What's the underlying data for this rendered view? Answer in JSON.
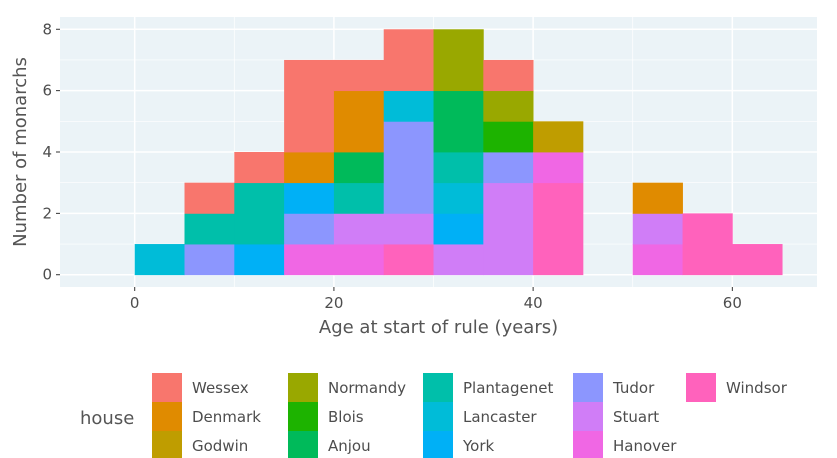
{
  "chart_data": {
    "type": "bar",
    "subtype": "stacked-histogram",
    "xlabel": "Age at start of rule (years)",
    "ylabel": "Number of monarchs",
    "xlim": [
      -7.5,
      68.5
    ],
    "ylim": [
      -0.4,
      8.4
    ],
    "x_ticks": [
      0,
      20,
      40,
      60
    ],
    "y_ticks": [
      0,
      2,
      4,
      6,
      8
    ],
    "bin_width": 5,
    "grid": true,
    "legend_title": "house",
    "legend_position": "bottom",
    "houses": [
      {
        "name": "Wessex",
        "color": "#F8766D"
      },
      {
        "name": "Denmark",
        "color": "#E08B00"
      },
      {
        "name": "Godwin",
        "color": "#BF9D00"
      },
      {
        "name": "Normandy",
        "color": "#99A800"
      },
      {
        "name": "Blois",
        "color": "#1DB300"
      },
      {
        "name": "Anjou",
        "color": "#00BA5A"
      },
      {
        "name": "Plantagenet",
        "color": "#00BFAA"
      },
      {
        "name": "Lancaster",
        "color": "#00BCD8"
      },
      {
        "name": "York",
        "color": "#00B0F6"
      },
      {
        "name": "Tudor",
        "color": "#8C96FE"
      },
      {
        "name": "Stuart",
        "color": "#D07DF7"
      },
      {
        "name": "Hanover",
        "color": "#F067E4"
      },
      {
        "name": "Windsor",
        "color": "#FF62BC"
      }
    ],
    "bins": [
      {
        "x0": 0,
        "x1": 5,
        "counts": {
          "Lancaster": 1
        }
      },
      {
        "x0": 5,
        "x1": 10,
        "counts": {
          "Tudor": 1,
          "Plantagenet": 1,
          "Wessex": 1
        }
      },
      {
        "x0": 10,
        "x1": 15,
        "counts": {
          "York": 1,
          "Plantagenet": 2,
          "Wessex": 1
        }
      },
      {
        "x0": 15,
        "x1": 20,
        "counts": {
          "Hanover": 1,
          "Tudor": 1,
          "York": 1,
          "Denmark": 1,
          "Wessex": 3
        }
      },
      {
        "x0": 20,
        "x1": 25,
        "counts": {
          "Hanover": 1,
          "Stuart": 1,
          "Plantagenet": 1,
          "Anjou": 1,
          "Denmark": 2,
          "Wessex": 1
        }
      },
      {
        "x0": 25,
        "x1": 30,
        "counts": {
          "Windsor": 1,
          "Stuart": 1,
          "Tudor": 3,
          "Lancaster": 1,
          "Wessex": 2
        }
      },
      {
        "x0": 30,
        "x1": 35,
        "counts": {
          "Stuart": 1,
          "York": 1,
          "Lancaster": 1,
          "Plantagenet": 1,
          "Anjou": 2,
          "Normandy": 2
        }
      },
      {
        "x0": 35,
        "x1": 40,
        "counts": {
          "Stuart": 3,
          "Tudor": 1,
          "Blois": 1,
          "Normandy": 1,
          "Wessex": 1
        }
      },
      {
        "x0": 40,
        "x1": 45,
        "counts": {
          "Windsor": 3,
          "Hanover": 1,
          "Godwin": 1
        }
      },
      {
        "x0": 45,
        "x1": 50,
        "counts": {}
      },
      {
        "x0": 50,
        "x1": 55,
        "counts": {
          "Hanover": 1,
          "Stuart": 1,
          "Denmark": 1
        }
      },
      {
        "x0": 55,
        "x1": 60,
        "counts": {
          "Windsor": 2
        }
      },
      {
        "x0": 60,
        "x1": 65,
        "counts": {
          "Windsor": 1
        }
      }
    ]
  }
}
